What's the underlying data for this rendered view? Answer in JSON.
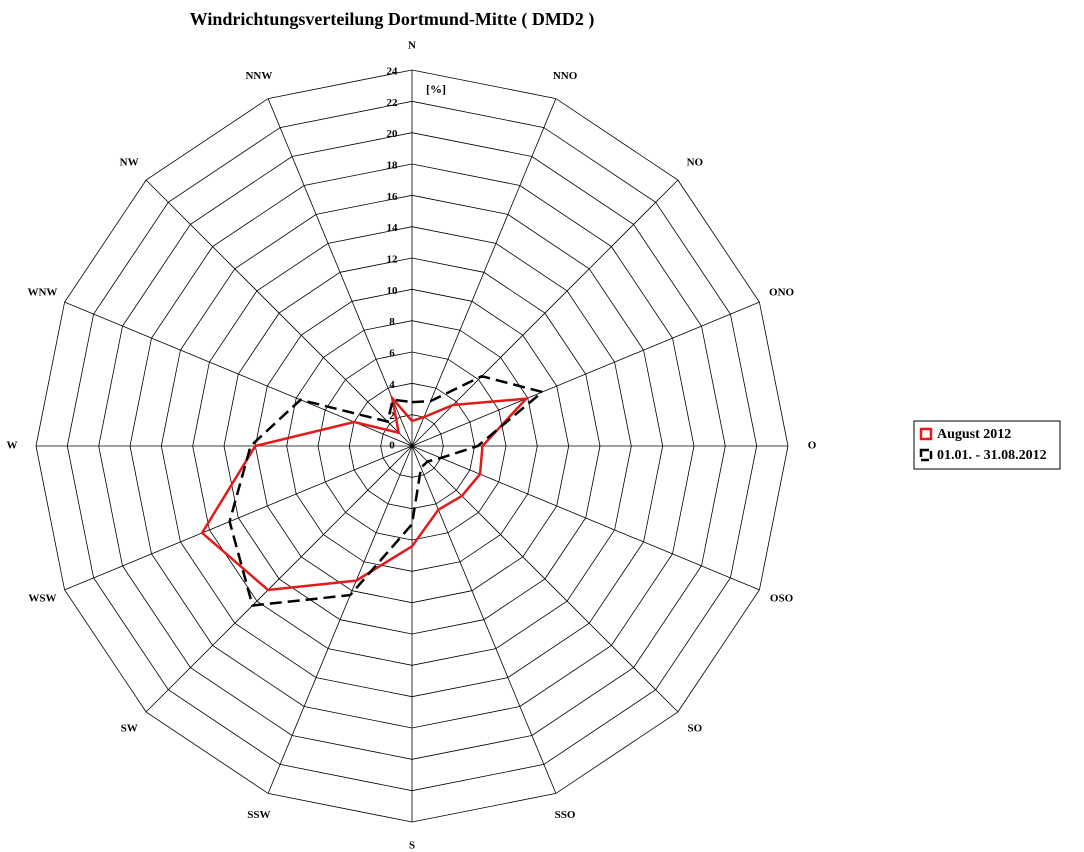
{
  "chart_data": {
    "type": "radar",
    "title": "Windrichtungsverteilung Dortmund-Mitte ( DMD2 )",
    "unit_label": "[%]",
    "categories": [
      "N",
      "NNO",
      "NO",
      "ONO",
      "O",
      "OSO",
      "SO",
      "SSO",
      "S",
      "SSW",
      "SW",
      "WSW",
      "W",
      "WNW",
      "NW",
      "NNW"
    ],
    "series": [
      {
        "name": "August 2012",
        "color": "#e41a1a",
        "dash": false,
        "values": [
          1.6,
          2.0,
          3.7,
          7.9,
          4.5,
          4.7,
          4.5,
          4.4,
          6.4,
          9.3,
          13.0,
          14.5,
          10.0,
          4.0,
          1.2,
          3.3
        ]
      },
      {
        "name": "01.01. - 31.08.2012",
        "color": "#000000",
        "dash": true,
        "values": [
          2.8,
          3.1,
          6.3,
          9.0,
          4.2,
          2.0,
          1.4,
          1.5,
          5.0,
          10.3,
          14.4,
          12.6,
          10.3,
          7.7,
          2.2,
          3.2
        ]
      }
    ],
    "ylim": [
      0,
      24
    ],
    "yticks": [
      0,
      2,
      4,
      6,
      8,
      10,
      12,
      14,
      16,
      18,
      20,
      22,
      24
    ],
    "grid": true
  }
}
